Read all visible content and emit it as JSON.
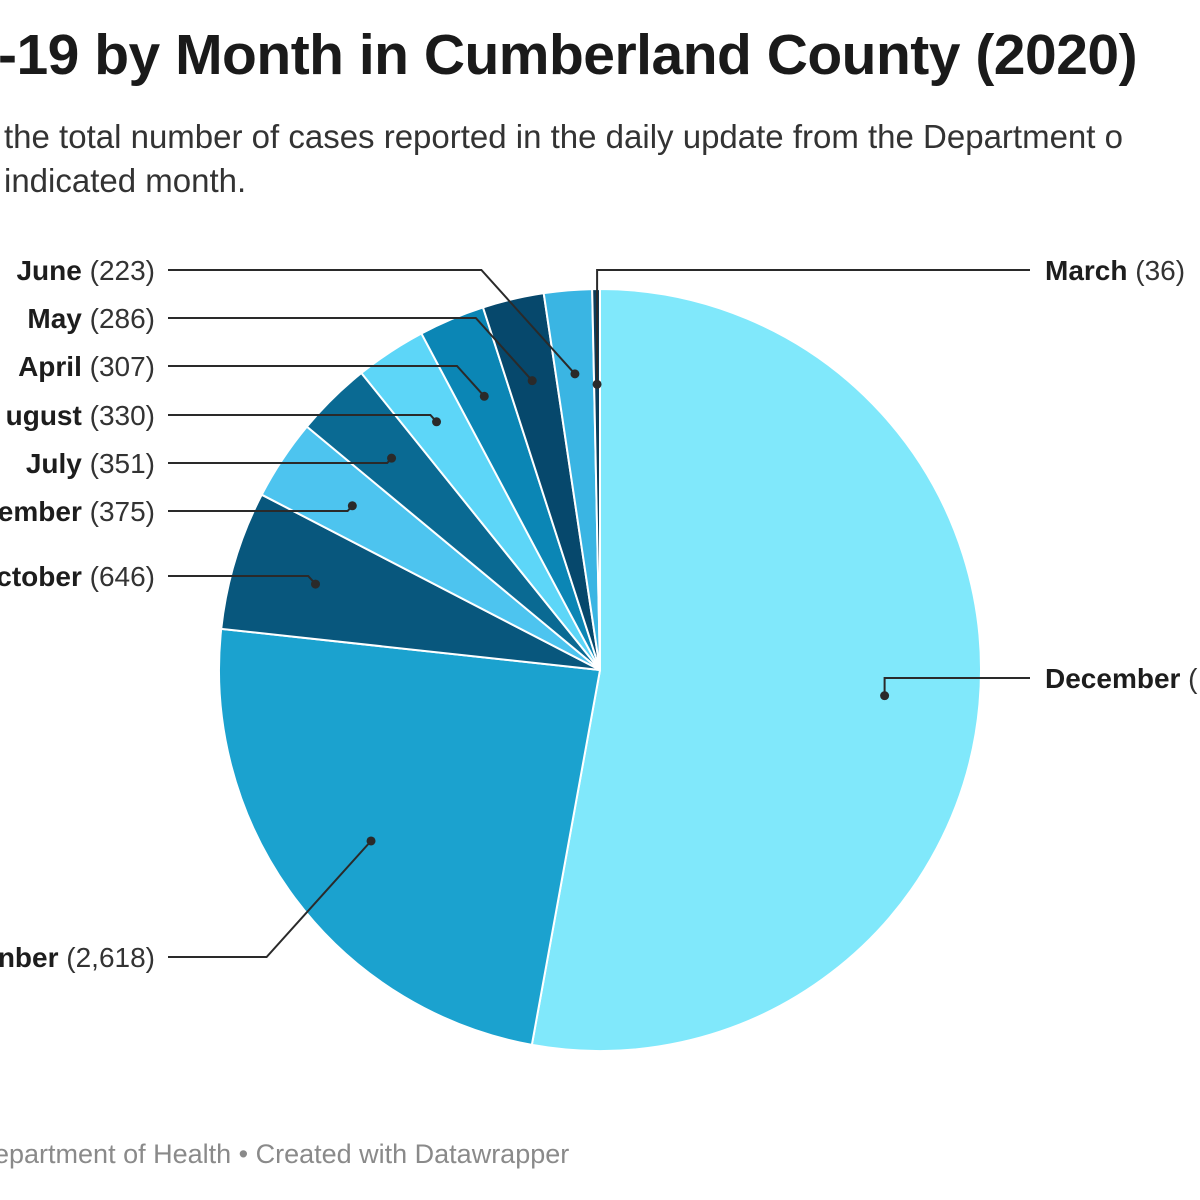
{
  "title": "-19 by Month in Cumberland County (2020)",
  "subtitle": {
    "line1": "the total number of cases reported in the daily update from the Department o",
    "line2": "indicated month."
  },
  "source": "epartment of Health • Created with Datawrapper",
  "chart_data": {
    "type": "pie",
    "title": "-19 by Month in Cumberland County (2020)",
    "slices": [
      {
        "name": "December",
        "label": "December",
        "value_label": "(",
        "value": 5800,
        "color": "#80e8fb"
      },
      {
        "name": "November",
        "label": "nber",
        "value_label": "(2,618)",
        "value": 2618,
        "color": "#1ba2cf"
      },
      {
        "name": "October",
        "label": "ctober",
        "value_label": "(646)",
        "value": 646,
        "color": "#08577d"
      },
      {
        "name": "September",
        "label": "ember",
        "value_label": "(375)",
        "value": 375,
        "color": "#4dc4ef"
      },
      {
        "name": "July",
        "label": "July",
        "value_label": "(351)",
        "value": 351,
        "color": "#0a6a93"
      },
      {
        "name": "August",
        "label": "ugust",
        "value_label": "(330)",
        "value": 330,
        "color": "#5dd6f8"
      },
      {
        "name": "April",
        "label": "April",
        "value_label": "(307)",
        "value": 307,
        "color": "#0b86b5"
      },
      {
        "name": "May",
        "label": "May",
        "value_label": "(286)",
        "value": 286,
        "color": "#06486c"
      },
      {
        "name": "June",
        "label": "June",
        "value_label": "(223)",
        "value": 223,
        "color": "#3ab5e3"
      },
      {
        "name": "March",
        "label": "March",
        "value_label": "(36)",
        "value": 36,
        "color": "#0a3c5a"
      }
    ]
  }
}
